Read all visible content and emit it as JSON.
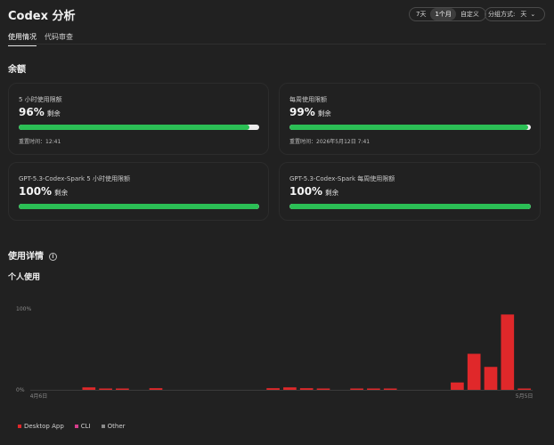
{
  "header": {
    "title": "Codex 分析",
    "ranges": [
      "7天",
      "1个月",
      "自定义"
    ],
    "active_range": "1个月",
    "groupby_label": "分组方式:",
    "groupby_value": "天"
  },
  "tabs": [
    {
      "label": "使用情况",
      "active": true
    },
    {
      "label": "代码审查",
      "active": false
    }
  ],
  "balance": {
    "title": "余额",
    "cards": [
      {
        "label": "5 小时使用限额",
        "percent": "96%",
        "remaining": "剩余",
        "fill": 0.96,
        "reset": "重置时间：12:41"
      },
      {
        "label": "每周使用限额",
        "percent": "99%",
        "remaining": "剩余",
        "fill": 0.99,
        "reset": "重置时间：2026年5月12日 7:41"
      },
      {
        "label": "GPT-5.3-Codex-Spark 5 小时使用限额",
        "percent": "100%",
        "remaining": "剩余",
        "fill": 1.0,
        "reset": ""
      },
      {
        "label": "GPT-5.3-Codex-Spark 每周使用限额",
        "percent": "100%",
        "remaining": "剩余",
        "fill": 1.0,
        "reset": ""
      }
    ]
  },
  "usage": {
    "title": "使用详情",
    "subtitle": "个人使用"
  },
  "colors": {
    "desktop": "#e0282a",
    "cli": "#d63d8c",
    "other": "#8a8a8a",
    "bar_fill": "#2bbf55"
  },
  "chart_data": {
    "type": "bar",
    "y_ticks": [
      "100%",
      "0%"
    ],
    "ylim": [
      0,
      100
    ],
    "x_tick_labels": [
      {
        "index": 0,
        "label": "4月6日"
      },
      {
        "index": 29,
        "label": "5月5日"
      }
    ],
    "categories": [
      "4月6日",
      "",
      "",
      "",
      "",
      "",
      "",
      "",
      "",
      "",
      "",
      "",
      "",
      "",
      "",
      "",
      "",
      "",
      "",
      "",
      "",
      "",
      "",
      "",
      "",
      "",
      "",
      "",
      "",
      "5月5日"
    ],
    "series": [
      {
        "name": "Desktop App",
        "color": "#e0282a",
        "values": [
          0,
          0,
          0,
          3,
          1,
          1,
          0,
          2,
          0,
          0,
          0,
          0,
          0,
          0,
          2,
          3,
          2,
          1,
          0,
          1,
          1,
          0.5,
          0,
          0,
          0,
          9,
          44,
          28,
          92,
          1
        ]
      },
      {
        "name": "CLI",
        "color": "#d63d8c",
        "values": [
          0,
          0,
          0,
          0,
          0,
          0,
          0,
          0,
          0,
          0,
          0,
          0,
          0,
          0,
          0,
          0,
          0,
          0,
          0,
          0,
          0,
          0,
          0,
          0,
          0,
          0,
          0,
          0,
          0,
          0
        ]
      },
      {
        "name": "Other",
        "color": "#8a8a8a",
        "values": [
          0,
          0,
          0,
          0,
          0,
          0,
          0,
          0,
          0,
          0,
          0,
          0,
          0,
          0,
          0,
          0,
          0,
          0,
          0,
          0,
          0,
          0,
          0,
          0,
          0,
          0,
          0,
          0,
          0,
          0
        ]
      }
    ],
    "legend_position": "bottom-left",
    "grid": false
  }
}
